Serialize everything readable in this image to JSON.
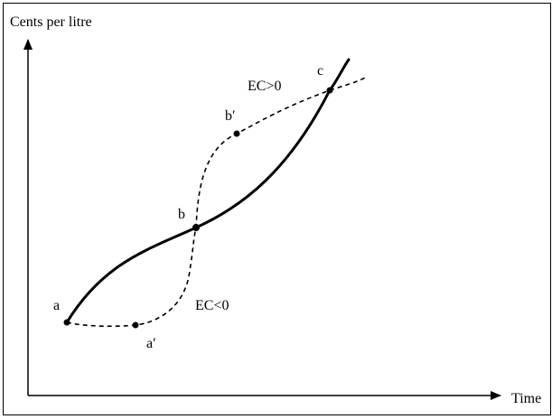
{
  "diagram": {
    "y_axis_label": "Cents per litre",
    "x_axis_label": "Time",
    "points": {
      "a": "a",
      "a_prime": "a′",
      "b": "b",
      "b_prime": "b′",
      "c": "c"
    },
    "annotations": {
      "ec_positive": "EC>0",
      "ec_negative": "EC<0"
    },
    "colors": {
      "ink": "#000000",
      "background": "#ffffff"
    }
  }
}
